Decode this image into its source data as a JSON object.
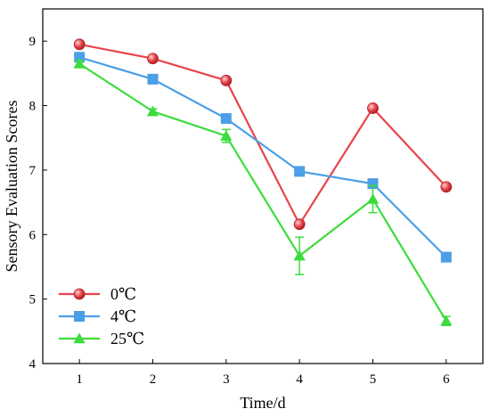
{
  "chart_data": {
    "type": "line",
    "xlabel": "Time/d",
    "ylabel": "Sensory Evaluation Scores",
    "x": [
      1,
      2,
      3,
      4,
      5,
      6
    ],
    "xlim": [
      0.5,
      6.5
    ],
    "ylim": [
      4,
      9.5
    ],
    "xticks": [
      1,
      2,
      3,
      4,
      5,
      6
    ],
    "yticks": [
      4,
      5,
      6,
      7,
      8,
      9
    ],
    "grid": false,
    "legend_position": "bottom-left",
    "series": [
      {
        "name": "0℃",
        "color": "#e8434a",
        "marker": "sphere",
        "values": [
          8.95,
          8.73,
          8.39,
          6.16,
          7.96,
          6.74
        ],
        "errors": [
          0,
          0,
          0,
          0,
          0,
          0
        ]
      },
      {
        "name": "4℃",
        "color": "#4a9fe6",
        "marker": "square",
        "values": [
          8.75,
          8.41,
          7.8,
          6.98,
          6.79,
          5.65
        ],
        "errors": [
          0,
          0,
          0,
          0,
          0,
          0
        ]
      },
      {
        "name": "25℃",
        "color": "#3ddc3d",
        "marker": "triangle",
        "values": [
          8.65,
          7.91,
          7.53,
          5.67,
          6.55,
          4.66
        ],
        "errors": [
          0.05,
          0.04,
          0.1,
          0.29,
          0.21,
          0.07
        ]
      }
    ]
  }
}
